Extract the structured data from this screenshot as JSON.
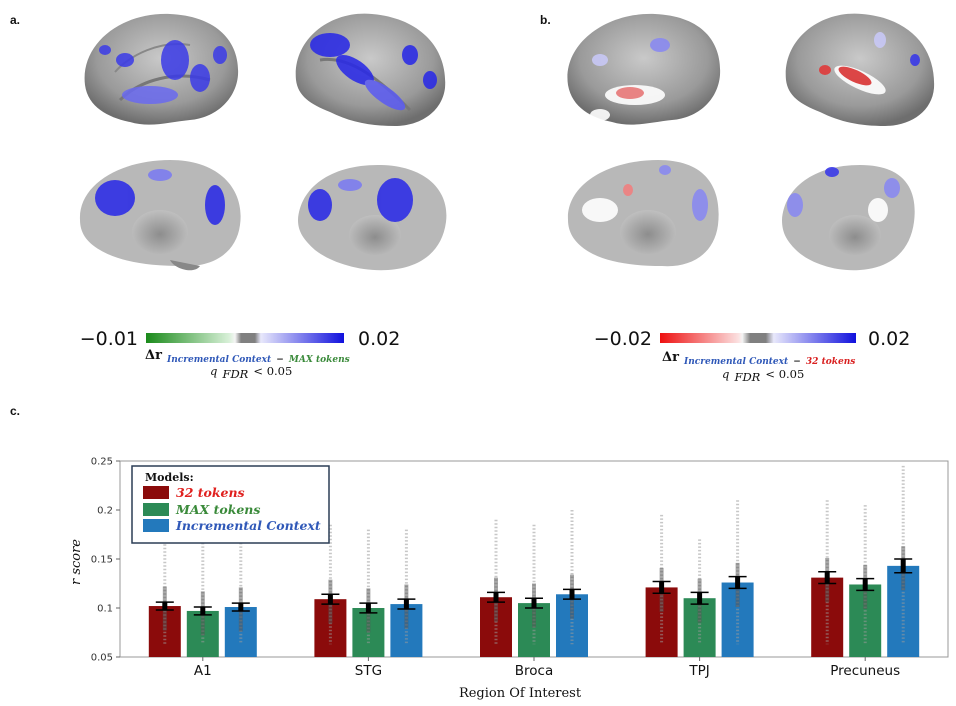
{
  "panels": {
    "a": "a.",
    "b": "b.",
    "c": "c."
  },
  "colorbar_a": {
    "min_label": "−0.01",
    "max_label": "0.02",
    "delta": "Δr",
    "subscript_parts": [
      {
        "text": "Incremental Context",
        "color": "#2f58b8"
      },
      {
        "text": "−",
        "color": "#111111"
      },
      {
        "text": "MAX tokens",
        "color": "#3a8a3a"
      }
    ],
    "q_prefix": "q",
    "q_sub": "FDR",
    "q_suffix": " < 0.05"
  },
  "colorbar_b": {
    "min_label": "−0.02",
    "max_label": "0.02",
    "delta": "Δr",
    "subscript_parts": [
      {
        "text": "Incremental Context",
        "color": "#2f58b8"
      },
      {
        "text": "−",
        "color": "#111111"
      },
      {
        "text": "32 tokens",
        "color": "#d92020"
      }
    ],
    "q_prefix": "q",
    "q_sub": "FDR",
    "q_suffix": " < 0.05"
  },
  "colors": {
    "red": "#8b0b0b",
    "green": "#2c8a56",
    "blue": "#2379bc",
    "label_red": "#e0201e",
    "label_green": "#3a8a3a",
    "label_blue": "#2f58b8"
  },
  "chart_data": {
    "type": "bar",
    "title": "",
    "xlabel": "Region Of Interest",
    "ylabel": "r score",
    "ylim": [
      0.05,
      0.25
    ],
    "yticks": [
      "0.05",
      "0.1",
      "0.15",
      "0.2",
      "0.25"
    ],
    "ytick_values": [
      0.05,
      0.1,
      0.15,
      0.2,
      0.25
    ],
    "categories": [
      "A1",
      "STG",
      "Broca",
      "TPJ",
      "Precuneus"
    ],
    "legend_title": "Models:",
    "series": [
      {
        "name": "32 tokens",
        "values": [
          0.102,
          0.109,
          0.111,
          0.121,
          0.131
        ],
        "err": [
          0.004,
          0.005,
          0.005,
          0.006,
          0.006
        ],
        "maxpt": [
          0.165,
          0.185,
          0.19,
          0.195,
          0.21
        ]
      },
      {
        "name": "MAX tokens",
        "values": [
          0.097,
          0.1,
          0.105,
          0.11,
          0.124
        ],
        "err": [
          0.004,
          0.005,
          0.005,
          0.006,
          0.006
        ],
        "maxpt": [
          0.17,
          0.18,
          0.185,
          0.17,
          0.205
        ]
      },
      {
        "name": "Incremental Context",
        "values": [
          0.101,
          0.104,
          0.114,
          0.126,
          0.143
        ],
        "err": [
          0.004,
          0.005,
          0.005,
          0.006,
          0.007
        ],
        "maxpt": [
          0.17,
          0.18,
          0.2,
          0.21,
          0.245
        ]
      }
    ]
  }
}
